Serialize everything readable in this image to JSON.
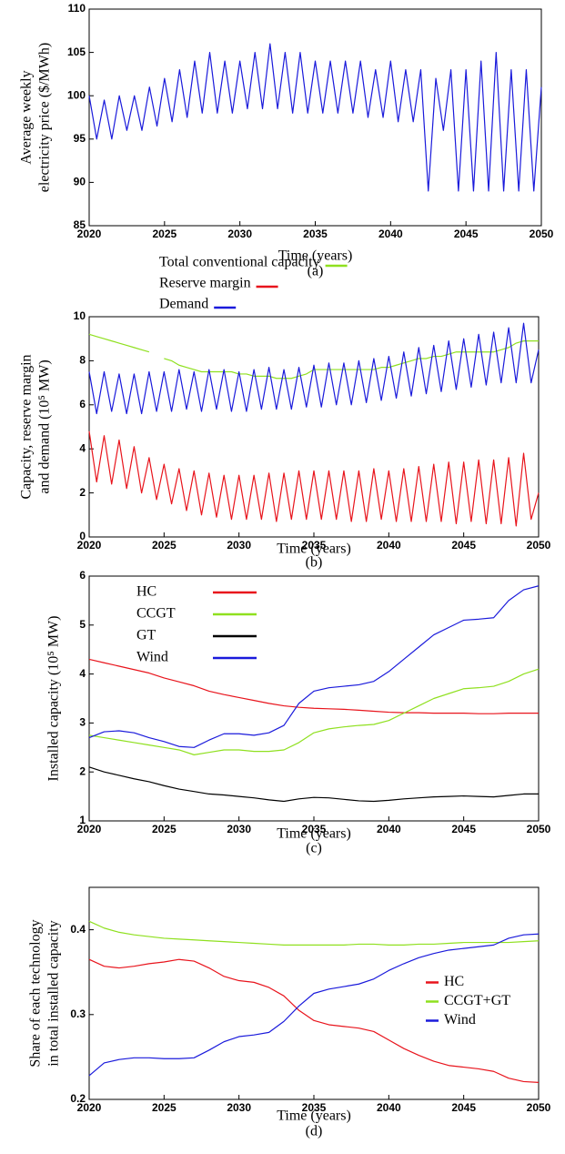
{
  "chart_data": [
    {
      "type": "line",
      "caption": "(a)",
      "xlabel": "Time (years)",
      "ylabel": [
        "Average weekly",
        "electricity price ($/MWh)"
      ],
      "xlim": [
        2020,
        2050
      ],
      "xticks": [
        2020,
        2025,
        2030,
        2035,
        2040,
        2045,
        2050
      ],
      "ylim": [
        85,
        110
      ],
      "yticks": [
        85,
        90,
        95,
        100,
        105,
        110
      ],
      "x": [
        2020,
        2020.5,
        2021,
        2021.5,
        2022,
        2022.5,
        2023,
        2023.5,
        2024,
        2024.5,
        2025,
        2025.5,
        2026,
        2026.5,
        2027,
        2027.5,
        2028,
        2028.5,
        2029,
        2029.5,
        2030,
        2030.5,
        2031,
        2031.5,
        2032,
        2032.5,
        2033,
        2033.5,
        2034,
        2034.5,
        2035,
        2035.5,
        2036,
        2036.5,
        2037,
        2037.5,
        2038,
        2038.5,
        2039,
        2039.5,
        2040,
        2040.5,
        2041,
        2041.5,
        2042,
        2042.5,
        2043,
        2043.5,
        2044,
        2044.5,
        2045,
        2045.5,
        2046,
        2046.5,
        2047,
        2047.5,
        2048,
        2048.5,
        2049,
        2049.5,
        2050
      ],
      "series": [
        {
          "color": "#1a1adb",
          "values": [
            100,
            95,
            99.5,
            95,
            100,
            96,
            100,
            96,
            101,
            96.5,
            102,
            97,
            103,
            97.5,
            104,
            98,
            105,
            98,
            104,
            98,
            104,
            98.5,
            105,
            98.5,
            106,
            98.5,
            105,
            98,
            105,
            98,
            104,
            98,
            104,
            98,
            104,
            98,
            104,
            97.5,
            103,
            97.5,
            104,
            97,
            103,
            97,
            103,
            89,
            102,
            96,
            103,
            89,
            103,
            89,
            104,
            89,
            105,
            89,
            103,
            89,
            103,
            89,
            101
          ]
        }
      ]
    },
    {
      "type": "line",
      "caption": "(b)",
      "xlabel": "Time (years)",
      "ylabel": [
        "Capacity, reserve margin",
        "and demand (10⁵ MW)"
      ],
      "legend": "top",
      "xlim": [
        2020,
        2050
      ],
      "xticks": [
        2020,
        2025,
        2030,
        2035,
        2040,
        2045,
        2050
      ],
      "ylim": [
        0,
        10
      ],
      "yticks": [
        0,
        2,
        4,
        6,
        8,
        10
      ],
      "x": [
        2020,
        2020.5,
        2021,
        2021.5,
        2022,
        2022.5,
        2023,
        2023.5,
        2024,
        2024.5,
        2025,
        2025.5,
        2026,
        2026.5,
        2027,
        2027.5,
        2028,
        2028.5,
        2029,
        2029.5,
        2030,
        2030.5,
        2031,
        2031.5,
        2032,
        2032.5,
        2033,
        2033.5,
        2034,
        2034.5,
        2035,
        2035.5,
        2036,
        2036.5,
        2037,
        2037.5,
        2038,
        2038.5,
        2039,
        2039.5,
        2040,
        2040.5,
        2041,
        2041.5,
        2042,
        2042.5,
        2043,
        2043.5,
        2044,
        2044.5,
        2045,
        2045.5,
        2046,
        2046.5,
        2047,
        2047.5,
        2048,
        2048.5,
        2049,
        2049.5,
        2050
      ],
      "series": [
        {
          "name": "Total conventional capacity",
          "color": "#8fe01f",
          "values": [
            9.2,
            9.1,
            9.0,
            8.9,
            8.8,
            8.7,
            8.6,
            8.5,
            8.4,
            null,
            8.1,
            8.0,
            7.8,
            7.7,
            7.6,
            7.5,
            7.5,
            7.5,
            7.5,
            7.5,
            7.4,
            7.4,
            7.3,
            7.3,
            7.3,
            7.2,
            7.2,
            7.2,
            7.3,
            7.4,
            7.6,
            7.6,
            7.6,
            7.6,
            7.6,
            7.6,
            7.6,
            7.6,
            7.6,
            7.7,
            7.7,
            7.8,
            7.9,
            8.0,
            8.1,
            8.1,
            8.2,
            8.2,
            8.3,
            8.4,
            8.4,
            8.4,
            8.4,
            8.4,
            8.4,
            8.5,
            8.6,
            8.8,
            8.9,
            8.9,
            8.9
          ]
        },
        {
          "name": "Reserve margin",
          "color": "#e8141c",
          "values": [
            4.8,
            2.5,
            4.6,
            2.4,
            4.4,
            2.2,
            4.1,
            2.0,
            3.6,
            1.7,
            3.3,
            1.5,
            3.1,
            1.2,
            3.0,
            1.0,
            2.9,
            0.9,
            2.8,
            0.8,
            2.8,
            0.8,
            2.8,
            0.8,
            2.9,
            0.7,
            2.9,
            0.8,
            3.0,
            0.8,
            3.0,
            0.8,
            3.0,
            0.8,
            3.0,
            0.7,
            3.0,
            0.7,
            3.1,
            0.8,
            3.0,
            0.7,
            3.1,
            0.7,
            3.2,
            0.7,
            3.3,
            0.7,
            3.4,
            0.6,
            3.4,
            0.7,
            3.5,
            0.6,
            3.5,
            0.6,
            3.6,
            0.5,
            3.8,
            0.8,
            2.0
          ]
        },
        {
          "name": "Demand",
          "color": "#1a1adb",
          "values": [
            7.5,
            5.6,
            7.5,
            5.7,
            7.4,
            5.6,
            7.4,
            5.6,
            7.5,
            5.7,
            7.5,
            5.7,
            7.6,
            5.8,
            7.5,
            5.7,
            7.6,
            5.8,
            7.6,
            5.7,
            7.5,
            5.7,
            7.6,
            5.8,
            7.7,
            5.8,
            7.6,
            5.8,
            7.7,
            5.9,
            7.8,
            5.9,
            7.9,
            6.0,
            7.9,
            6.0,
            8.0,
            6.1,
            8.1,
            6.2,
            8.2,
            6.3,
            8.4,
            6.4,
            8.6,
            6.5,
            8.7,
            6.6,
            8.9,
            6.7,
            9.0,
            6.8,
            9.2,
            6.9,
            9.3,
            7.0,
            9.5,
            7.0,
            9.7,
            7.0,
            8.5
          ]
        }
      ]
    },
    {
      "type": "line",
      "caption": "(c)",
      "xlabel": "Time (years)",
      "ylabel": [
        "Installed capacity (10⁵ MW)"
      ],
      "legend": "upper left",
      "xlim": [
        2020,
        2050
      ],
      "xticks": [
        2020,
        2025,
        2030,
        2035,
        2040,
        2045,
        2050
      ],
      "ylim": [
        1,
        6
      ],
      "yticks": [
        1,
        2,
        3,
        4,
        5,
        6
      ],
      "x": [
        2020,
        2021,
        2022,
        2023,
        2024,
        2025,
        2026,
        2027,
        2028,
        2029,
        2030,
        2031,
        2032,
        2033,
        2034,
        2035,
        2036,
        2037,
        2038,
        2039,
        2040,
        2041,
        2042,
        2043,
        2044,
        2045,
        2046,
        2047,
        2048,
        2049,
        2050
      ],
      "series": [
        {
          "name": "HC",
          "color": "#e8141c",
          "values": [
            4.3,
            4.23,
            4.16,
            4.09,
            4.02,
            3.92,
            3.84,
            3.76,
            3.65,
            3.58,
            3.52,
            3.46,
            3.4,
            3.35,
            3.32,
            3.3,
            3.29,
            3.28,
            3.26,
            3.24,
            3.22,
            3.21,
            3.21,
            3.2,
            3.2,
            3.2,
            3.19,
            3.19,
            3.2,
            3.2,
            3.2
          ]
        },
        {
          "name": "CCGT",
          "color": "#8fe01f",
          "values": [
            2.75,
            2.7,
            2.65,
            2.6,
            2.55,
            2.5,
            2.45,
            2.35,
            2.4,
            2.45,
            2.45,
            2.42,
            2.42,
            2.45,
            2.6,
            2.8,
            2.88,
            2.92,
            2.95,
            2.97,
            3.05,
            3.2,
            3.35,
            3.5,
            3.6,
            3.7,
            3.72,
            3.75,
            3.85,
            4.0,
            4.1
          ]
        },
        {
          "name": "GT",
          "color": "#000000",
          "values": [
            2.1,
            2.0,
            1.93,
            1.86,
            1.8,
            1.72,
            1.65,
            1.6,
            1.55,
            1.53,
            1.5,
            1.47,
            1.43,
            1.4,
            1.45,
            1.48,
            1.47,
            1.44,
            1.41,
            1.4,
            1.42,
            1.45,
            1.47,
            1.49,
            1.5,
            1.51,
            1.5,
            1.49,
            1.52,
            1.55,
            1.55
          ]
        },
        {
          "name": "Wind",
          "color": "#1a1adb",
          "values": [
            2.7,
            2.82,
            2.84,
            2.8,
            2.7,
            2.62,
            2.52,
            2.5,
            2.65,
            2.78,
            2.78,
            2.75,
            2.8,
            2.95,
            3.4,
            3.65,
            3.72,
            3.75,
            3.78,
            3.85,
            4.05,
            4.3,
            4.55,
            4.8,
            4.95,
            5.1,
            5.12,
            5.15,
            5.5,
            5.72,
            5.8
          ]
        }
      ]
    },
    {
      "type": "line",
      "caption": "(d)",
      "xlabel": "Time (years)",
      "ylabel": [
        "Share of each technology",
        "in total installed capacity"
      ],
      "legend": "center right",
      "xlim": [
        2020,
        2050
      ],
      "xticks": [
        2020,
        2025,
        2030,
        2035,
        2040,
        2045,
        2050
      ],
      "ylim": [
        0.2,
        0.45
      ],
      "yticks": [
        0.2,
        0.3,
        0.4
      ],
      "x": [
        2020,
        2021,
        2022,
        2023,
        2024,
        2025,
        2026,
        2027,
        2028,
        2029,
        2030,
        2031,
        2032,
        2033,
        2034,
        2035,
        2036,
        2037,
        2038,
        2039,
        2040,
        2041,
        2042,
        2043,
        2044,
        2045,
        2046,
        2047,
        2048,
        2049,
        2050
      ],
      "series": [
        {
          "name": "HC",
          "color": "#e8141c",
          "values": [
            0.365,
            0.357,
            0.355,
            0.357,
            0.36,
            0.362,
            0.365,
            0.363,
            0.355,
            0.345,
            0.34,
            0.338,
            0.332,
            0.322,
            0.305,
            0.293,
            0.288,
            0.286,
            0.284,
            0.28,
            0.27,
            0.26,
            0.252,
            0.245,
            0.24,
            0.238,
            0.236,
            0.233,
            0.225,
            0.221,
            0.22
          ]
        },
        {
          "name": "CCGT+GT",
          "color": "#8fe01f",
          "values": [
            0.41,
            0.402,
            0.397,
            0.394,
            0.392,
            0.39,
            0.389,
            0.388,
            0.387,
            0.386,
            0.385,
            0.384,
            0.383,
            0.382,
            0.382,
            0.382,
            0.382,
            0.382,
            0.383,
            0.383,
            0.382,
            0.382,
            0.383,
            0.383,
            0.384,
            0.385,
            0.385,
            0.385,
            0.385,
            0.386,
            0.387
          ]
        },
        {
          "name": "Wind",
          "color": "#1a1adb",
          "values": [
            0.228,
            0.243,
            0.247,
            0.249,
            0.249,
            0.248,
            0.248,
            0.249,
            0.258,
            0.268,
            0.274,
            0.276,
            0.279,
            0.292,
            0.31,
            0.325,
            0.33,
            0.333,
            0.336,
            0.342,
            0.352,
            0.36,
            0.367,
            0.372,
            0.376,
            0.378,
            0.38,
            0.382,
            0.39,
            0.394,
            0.395
          ]
        }
      ]
    }
  ]
}
